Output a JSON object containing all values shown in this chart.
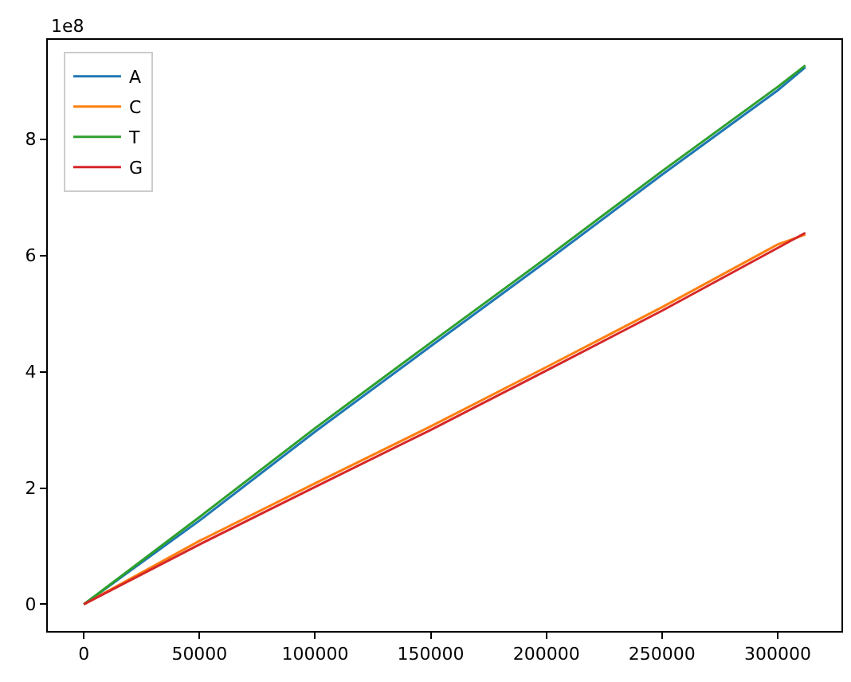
{
  "chart_data": {
    "type": "line",
    "x": [
      0,
      50000,
      100000,
      150000,
      200000,
      250000,
      300000,
      312000
    ],
    "series": [
      {
        "name": "A",
        "color": "#1f77b4",
        "values": [
          0,
          1.44,
          2.97,
          4.44,
          5.9,
          7.39,
          8.84,
          9.24
        ]
      },
      {
        "name": "C",
        "color": "#ff7f0e",
        "values": [
          0,
          1.09,
          2.08,
          3.06,
          4.08,
          5.11,
          6.19,
          6.36
        ]
      },
      {
        "name": "T",
        "color": "#2ca02c",
        "values": [
          0,
          1.5,
          3.03,
          4.5,
          5.96,
          7.45,
          8.9,
          9.27
        ]
      },
      {
        "name": "G",
        "color": "#d62728",
        "values": [
          0,
          1.03,
          2.02,
          3.0,
          4.02,
          5.05,
          6.13,
          6.39
        ]
      }
    ],
    "xlim": [
      -15600,
      327600
    ],
    "xticks": [
      0,
      50000,
      100000,
      150000,
      200000,
      250000,
      300000
    ],
    "ylim": [
      -0.46,
      9.71
    ],
    "yticks": [
      0,
      2,
      4,
      6,
      8
    ],
    "annotations": [
      "1e8"
    ],
    "legend": "top left",
    "grid": false
  }
}
